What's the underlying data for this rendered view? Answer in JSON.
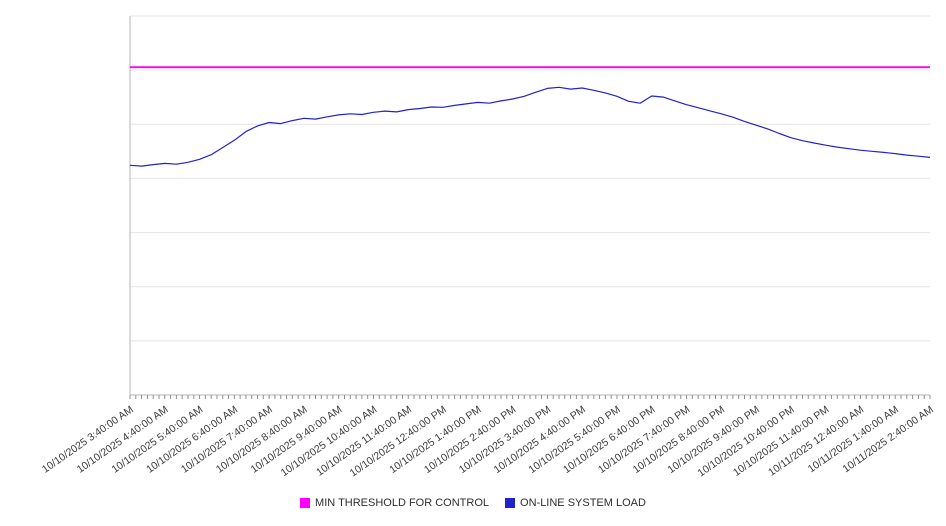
{
  "chart_data": {
    "type": "line",
    "x_tick_labels": [
      "10/10/2025 3:40:00 AM",
      "10/10/2025 4:40:00 AM",
      "10/10/2025 5:40:00 AM",
      "10/10/2025 6:40:00 AM",
      "10/10/2025 7:40:00 AM",
      "10/10/2025 8:40:00 AM",
      "10/10/2025 9:40:00 AM",
      "10/10/2025 10:40:00 AM",
      "10/10/2025 11:40:00 AM",
      "10/10/2025 12:40:00 PM",
      "10/10/2025 1:40:00 PM",
      "10/10/2025 2:40:00 PM",
      "10/10/2025 3:40:00 PM",
      "10/10/2025 4:40:00 PM",
      "10/10/2025 5:40:00 PM",
      "10/10/2025 6:40:00 PM",
      "10/10/2025 7:40:00 PM",
      "10/10/2025 8:40:00 PM",
      "10/10/2025 9:40:00 PM",
      "10/10/2025 10:40:00 PM",
      "10/10/2025 11:40:00 PM",
      "10/11/2025 12:40:00 AM",
      "10/11/2025 1:40:00 AM",
      "10/11/2025 2:40:00 AM"
    ],
    "series": [
      {
        "name": "MIN THRESHOLD FOR CONTROL",
        "kind": "threshold-horizontal-line",
        "color": "#ff00ff",
        "value_fraction": 0.865
      },
      {
        "name": "ON-LINE SYSTEM LOAD",
        "kind": "line",
        "color": "#2222cc",
        "points_per_label": 3,
        "values_fraction": [
          0.606,
          0.604,
          0.608,
          0.611,
          0.609,
          0.614,
          0.622,
          0.634,
          0.653,
          0.672,
          0.695,
          0.71,
          0.719,
          0.716,
          0.724,
          0.73,
          0.728,
          0.734,
          0.739,
          0.742,
          0.74,
          0.746,
          0.749,
          0.747,
          0.753,
          0.756,
          0.76,
          0.759,
          0.764,
          0.768,
          0.772,
          0.77,
          0.776,
          0.781,
          0.788,
          0.799,
          0.809,
          0.812,
          0.807,
          0.81,
          0.804,
          0.797,
          0.788,
          0.775,
          0.77,
          0.789,
          0.786,
          0.776,
          0.766,
          0.758,
          0.75,
          0.742,
          0.733,
          0.722,
          0.712,
          0.702,
          0.69,
          0.679,
          0.671,
          0.665,
          0.659,
          0.654,
          0.65,
          0.646,
          0.643,
          0.64,
          0.637,
          0.633,
          0.63,
          0.627
        ]
      }
    ],
    "y_axis": {
      "tick_labels": [],
      "range_fraction": [
        0,
        1
      ],
      "gridline_divisions": 7,
      "grid_on": true
    },
    "x_axis": {
      "minor_ticks_per_label": 6,
      "label_rotation_deg": -35
    },
    "legend_position": "bottom-center",
    "style": {
      "grid_color": "#e5e5e5",
      "axis_color": "#b5b5b5",
      "tick_color": "#8e8e8e",
      "label_color": "#3c3c3c",
      "threshold_color": "#ff00ff",
      "load_color": "#2222cc"
    }
  },
  "legend": {
    "items": [
      {
        "label": "MIN THRESHOLD FOR CONTROL",
        "color": "#ff00ff"
      },
      {
        "label": "ON-LINE SYSTEM LOAD",
        "color": "#2222cc"
      }
    ]
  }
}
